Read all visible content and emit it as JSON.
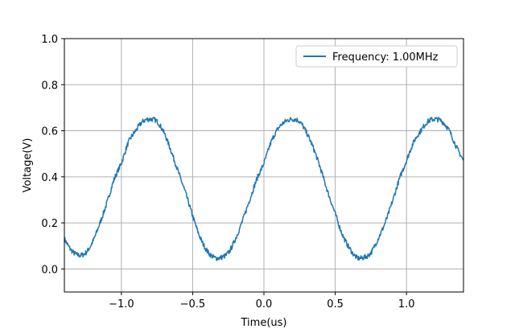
{
  "chart_data": {
    "type": "line",
    "title": "",
    "xlabel": "Time(us)",
    "ylabel": "Voltage(V)",
    "xlim": [
      -1.4,
      1.4
    ],
    "ylim": [
      -0.1,
      1.0
    ],
    "x_ticks": [
      -1.0,
      -0.5,
      0.0,
      0.5,
      1.0
    ],
    "x_tick_labels": [
      "−1.0",
      "−0.5",
      "0.0",
      "0.5",
      "1.0"
    ],
    "y_ticks": [
      0.0,
      0.2,
      0.4,
      0.6,
      0.8,
      1.0
    ],
    "y_tick_labels": [
      "0.0",
      "0.2",
      "0.4",
      "0.6",
      "0.8",
      "1.0"
    ],
    "grid": true,
    "legend_position": "top-right",
    "series": [
      {
        "name": "Frequency: 1.00MHz",
        "color": "#1f77b4",
        "x": [
          -1.4,
          -1.35,
          -1.3,
          -1.25,
          -1.2,
          -1.15,
          -1.1,
          -1.05,
          -1.0,
          -0.95,
          -0.9,
          -0.85,
          -0.8,
          -0.75,
          -0.7,
          -0.65,
          -0.6,
          -0.55,
          -0.5,
          -0.45,
          -0.4,
          -0.35,
          -0.3,
          -0.25,
          -0.2,
          -0.15,
          -0.1,
          -0.05,
          0.0,
          0.05,
          0.1,
          0.15,
          0.2,
          0.25,
          0.3,
          0.35,
          0.4,
          0.45,
          0.5,
          0.55,
          0.6,
          0.65,
          0.7,
          0.75,
          0.8,
          0.85,
          0.9,
          0.95,
          1.0,
          1.05,
          1.1,
          1.15,
          1.2,
          1.25,
          1.3,
          1.35,
          1.4
        ],
        "y": [
          0.13,
          0.08,
          0.06,
          0.07,
          0.12,
          0.2,
          0.29,
          0.39,
          0.46,
          0.55,
          0.6,
          0.64,
          0.65,
          0.64,
          0.59,
          0.51,
          0.42,
          0.33,
          0.23,
          0.14,
          0.08,
          0.05,
          0.05,
          0.07,
          0.13,
          0.21,
          0.3,
          0.39,
          0.46,
          0.55,
          0.61,
          0.64,
          0.65,
          0.64,
          0.59,
          0.52,
          0.43,
          0.33,
          0.24,
          0.15,
          0.09,
          0.05,
          0.05,
          0.07,
          0.13,
          0.2,
          0.29,
          0.39,
          0.47,
          0.55,
          0.6,
          0.64,
          0.65,
          0.64,
          0.6,
          0.53,
          0.47
        ]
      }
    ]
  }
}
